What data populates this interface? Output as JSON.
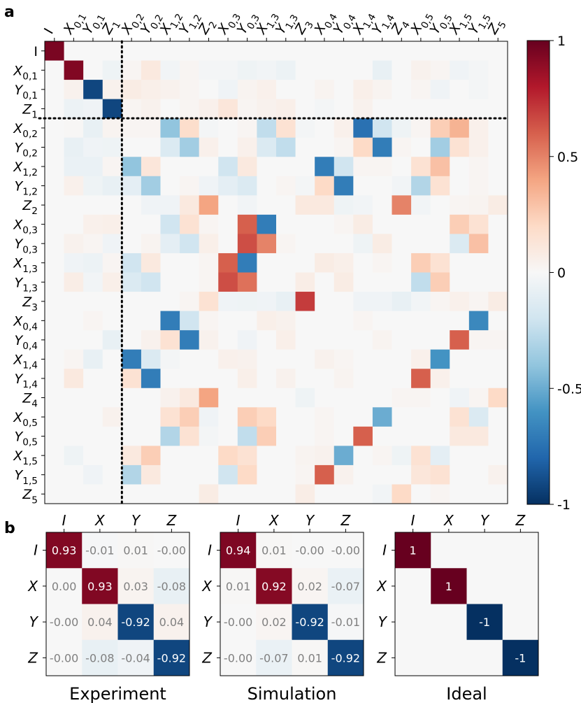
{
  "panel_labels": {
    "a": "a",
    "b": "b"
  },
  "chart_data": [
    {
      "type": "heatmap",
      "panel": "a",
      "cols": [
        "I",
        "X_{0,1}",
        "Y_{0,1}",
        "Z_1",
        "X_{0,2}",
        "Y_{0,2}",
        "X_{1,2}",
        "Y_{1,2}",
        "Z_2",
        "X_{0,3}",
        "Y_{0,3}",
        "X_{1,3}",
        "Y_{1,3}",
        "Z_3",
        "X_{0,4}",
        "Y_{0,4}",
        "X_{1,4}",
        "Y_{1,4}",
        "Z_4",
        "X_{0,5}",
        "Y_{0,5}",
        "X_{1,5}",
        "Y_{1,5}",
        "Z_5"
      ],
      "rows": [
        "I",
        "X_{0,1}",
        "Y_{0,1}",
        "Z_1",
        "X_{0,2}",
        "Y_{0,2}",
        "X_{1,2}",
        "Y_{1,2}",
        "Z_2",
        "X_{0,3}",
        "Y_{0,3}",
        "X_{1,3}",
        "Y_{1,3}",
        "Z_3",
        "X_{0,4}",
        "Y_{0,4}",
        "X_{1,4}",
        "Y_{1,4}",
        "Z_4",
        "X_{0,5}",
        "Y_{0,5}",
        "X_{1,5}",
        "Y_{1,5}",
        "Z_5"
      ],
      "values": [
        [
          0.95,
          0,
          0,
          0,
          0,
          0,
          0,
          0,
          0,
          0,
          0,
          0,
          0,
          0,
          0,
          0,
          0,
          0,
          0,
          0,
          0,
          0,
          0,
          0
        ],
        [
          0,
          0.93,
          0,
          -0.05,
          0.02,
          0.1,
          -0.03,
          0.02,
          -0.02,
          -0.02,
          -0.05,
          -0.03,
          -0.06,
          0,
          0,
          0,
          0,
          -0.08,
          0,
          0.04,
          0.02,
          -0.04,
          -0.02,
          0
        ],
        [
          0,
          0.04,
          -0.92,
          0.04,
          0.08,
          0.06,
          0.04,
          0.02,
          0,
          -0.04,
          0.03,
          0.05,
          0,
          0,
          0.03,
          0,
          0.06,
          0.03,
          0,
          0.02,
          -0.04,
          0,
          -0.02,
          0
        ],
        [
          0,
          -0.06,
          -0.04,
          -0.92,
          0.02,
          0.04,
          0,
          0.02,
          0.05,
          0.12,
          0.02,
          0.04,
          0.06,
          0,
          -0.02,
          0,
          0.04,
          0,
          0,
          0,
          0,
          0,
          0,
          0
        ],
        [
          0,
          0.01,
          -0.08,
          0.03,
          0.02,
          0.02,
          -0.4,
          0.18,
          -0.02,
          0,
          0.02,
          -0.25,
          0.15,
          -0.02,
          0,
          0.05,
          -0.75,
          -0.2,
          -0.05,
          0.02,
          0.25,
          0.35,
          0.05,
          0
        ],
        [
          0,
          -0.08,
          -0.04,
          -0.05,
          0,
          0,
          -0.15,
          -0.35,
          0.05,
          0,
          0.05,
          -0.15,
          -0.25,
          0,
          0,
          0.02,
          0.2,
          -0.7,
          0.02,
          0,
          -0.35,
          0.15,
          0.05,
          0
        ],
        [
          0,
          -0.07,
          -0.07,
          0.02,
          -0.4,
          0.12,
          0,
          0,
          0,
          -0.2,
          0.1,
          0,
          0,
          0,
          -0.7,
          -0.2,
          0.02,
          0.02,
          0,
          0.15,
          0.3,
          0,
          0.02,
          0
        ],
        [
          0,
          0.05,
          -0.05,
          -0.08,
          -0.1,
          -0.35,
          0,
          0.02,
          -0.04,
          -0.1,
          -0.15,
          0,
          0.02,
          -0.02,
          0.2,
          -0.7,
          0,
          0,
          -0.03,
          -0.3,
          0.15,
          0,
          0.02,
          0
        ],
        [
          0,
          0,
          0,
          0,
          0,
          -0.04,
          -0.04,
          0.1,
          0.4,
          0,
          -0.03,
          0,
          0,
          0.1,
          0.1,
          -0.05,
          -0.03,
          0,
          0.5,
          -0.03,
          0,
          0.02,
          0.03,
          0.08
        ],
        [
          0,
          0,
          0.05,
          0.06,
          0,
          0,
          -0.2,
          0.15,
          0.02,
          0,
          0.6,
          -0.7,
          0,
          0,
          0,
          0.02,
          0.08,
          0,
          0,
          0,
          0,
          0.25,
          0.15,
          0
        ],
        [
          0,
          0.04,
          0.02,
          -0.04,
          0,
          0.03,
          -0.1,
          -0.2,
          0.06,
          0,
          0.65,
          0.5,
          0.02,
          0,
          0,
          0,
          -0.05,
          0.08,
          0,
          0,
          0,
          -0.15,
          0.3,
          0
        ],
        [
          0,
          -0.04,
          -0.06,
          0.02,
          -0.2,
          0.1,
          0,
          0,
          0.02,
          0.6,
          -0.7,
          0,
          0,
          0,
          0.08,
          0.06,
          0,
          0.02,
          0,
          0.25,
          0.15,
          0,
          0,
          0
        ],
        [
          0,
          0.07,
          -0.03,
          0.06,
          -0.15,
          -0.2,
          0,
          0,
          0.02,
          0.65,
          0.55,
          0,
          0,
          0.07,
          0,
          0.08,
          0,
          0,
          0,
          -0.25,
          0.25,
          0,
          0,
          0
        ],
        [
          0,
          0,
          0,
          0,
          0,
          0,
          0,
          0.02,
          0.15,
          -0.04,
          -0.05,
          -0.04,
          -0.08,
          0.7,
          0,
          0,
          -0.04,
          -0.04,
          -0.08,
          -0.03,
          0.02,
          0.05,
          0.02,
          0.08
        ],
        [
          0,
          0,
          0.02,
          0,
          0,
          0,
          -0.7,
          -0.2,
          0.02,
          0,
          0,
          0.06,
          0.04,
          0,
          0,
          0,
          0.02,
          0,
          0,
          0,
          0,
          0,
          -0.65,
          0
        ],
        [
          0,
          0,
          0,
          -0.08,
          0,
          0.04,
          0.15,
          -0.7,
          0.04,
          0,
          -0.04,
          0,
          0.06,
          0,
          0,
          0,
          0,
          0.03,
          0,
          0,
          0,
          0.6,
          0.02,
          0.02
        ],
        [
          0,
          0.02,
          -0.08,
          0,
          -0.7,
          -0.15,
          -0.02,
          0,
          0,
          0.05,
          0.04,
          0,
          0,
          0,
          0.04,
          0.02,
          0,
          0,
          0,
          0.05,
          -0.6,
          0,
          0,
          0
        ],
        [
          0,
          0.1,
          0,
          0,
          0.15,
          -0.7,
          0,
          0,
          0,
          0,
          0.06,
          0,
          0.04,
          0,
          0,
          0.03,
          0,
          0,
          0,
          0.6,
          0.05,
          0,
          0,
          0
        ],
        [
          0,
          0,
          0,
          0,
          0,
          0,
          0.04,
          0.1,
          0.4,
          0,
          0,
          0,
          0,
          -0.05,
          0,
          0,
          0,
          0,
          0.02,
          0.02,
          0,
          -0.04,
          0.02,
          0.2
        ],
        [
          0,
          0,
          0,
          0.04,
          0,
          0,
          0.15,
          0.25,
          -0.04,
          0,
          0.25,
          0.2,
          0,
          0,
          0.02,
          0,
          0,
          -0.5,
          0,
          0,
          0,
          0.15,
          -0.15,
          0
        ],
        [
          0,
          0,
          0,
          0,
          0,
          0,
          -0.3,
          0.15,
          -0.02,
          0,
          -0.25,
          0.25,
          0,
          0,
          0.02,
          0,
          0.6,
          0,
          0,
          0,
          0,
          0.1,
          0.1,
          0
        ],
        [
          0,
          -0.05,
          0,
          0,
          0.1,
          0.25,
          0,
          0,
          0,
          0.2,
          0.15,
          0,
          0,
          0.03,
          0.04,
          -0.5,
          0,
          0.02,
          -0.05,
          0.15,
          -0.1,
          0,
          0,
          0
        ],
        [
          0,
          0,
          -0.04,
          0,
          -0.3,
          0.1,
          0,
          0,
          0,
          -0.2,
          0.2,
          0,
          0,
          0.02,
          0.6,
          0.04,
          0,
          0,
          0,
          0.12,
          0.15,
          0,
          0,
          0.04
        ],
        [
          0,
          0,
          0,
          0,
          0,
          0,
          0,
          0,
          0.08,
          0,
          0,
          0,
          0,
          0.07,
          0,
          0,
          0,
          -0.03,
          0.2,
          0,
          0.02,
          0,
          0,
          0
        ]
      ],
      "dividers": {
        "after_index": 3,
        "style": "dotted"
      },
      "colorbar": {
        "range": [
          -1,
          1
        ],
        "ticks": [
          1,
          0.5,
          0,
          -0.5,
          -1
        ],
        "tick_labels": [
          "1",
          "0.5",
          "0",
          "-0.5",
          "-1"
        ],
        "colormap": "RdBu_r"
      }
    },
    {
      "type": "heatmap",
      "panel": "b",
      "title": "Experiment",
      "labels": [
        "I",
        "X",
        "Y",
        "Z"
      ],
      "values": [
        [
          0.93,
          -0.01,
          0.01,
          -0.0
        ],
        [
          0.0,
          0.93,
          0.03,
          -0.08
        ],
        [
          -0.0,
          0.04,
          -0.92,
          0.04
        ],
        [
          -0.0,
          -0.08,
          -0.04,
          -0.92
        ]
      ],
      "cell_text": [
        [
          "0.93",
          "-0.01",
          "0.01",
          "-0.00"
        ],
        [
          "0.00",
          "0.93",
          "0.03",
          "-0.08"
        ],
        [
          "-0.00",
          "0.04",
          "-0.92",
          "0.04"
        ],
        [
          "-0.00",
          "-0.08",
          "-0.04",
          "-0.92"
        ]
      ]
    },
    {
      "type": "heatmap",
      "panel": "b",
      "title": "Simulation",
      "labels": [
        "I",
        "X",
        "Y",
        "Z"
      ],
      "values": [
        [
          0.94,
          0.01,
          -0.0,
          -0.0
        ],
        [
          0.01,
          0.92,
          0.02,
          -0.07
        ],
        [
          -0.0,
          0.02,
          -0.92,
          -0.01
        ],
        [
          -0.0,
          -0.07,
          0.01,
          -0.92
        ]
      ],
      "cell_text": [
        [
          "0.94",
          "0.01",
          "-0.00",
          "-0.00"
        ],
        [
          "0.01",
          "0.92",
          "0.02",
          "-0.07"
        ],
        [
          "-0.00",
          "0.02",
          "-0.92",
          "-0.01"
        ],
        [
          "-0.00",
          "-0.07",
          "0.01",
          "-0.92"
        ]
      ]
    },
    {
      "type": "heatmap",
      "panel": "b",
      "title": "Ideal",
      "labels": [
        "I",
        "X",
        "Y",
        "Z"
      ],
      "values": [
        [
          1,
          0,
          0,
          0
        ],
        [
          0,
          1,
          0,
          0
        ],
        [
          0,
          0,
          -1,
          0
        ],
        [
          0,
          0,
          0,
          -1
        ]
      ],
      "cell_text": [
        [
          "1",
          "",
          "",
          ""
        ],
        [
          "",
          "1",
          "",
          ""
        ],
        [
          "",
          "",
          "-1",
          ""
        ],
        [
          "",
          "",
          "",
          "-1"
        ]
      ]
    }
  ]
}
